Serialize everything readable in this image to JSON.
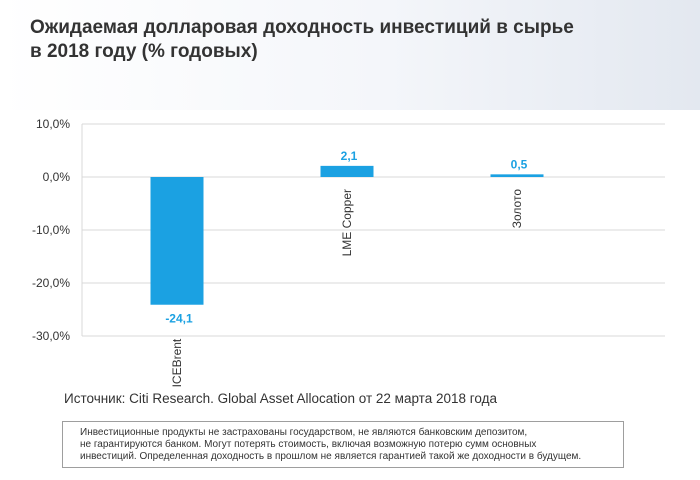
{
  "title": {
    "line1": "Ожидаемая долларовая доходность инвестиций в сырье",
    "line2": "в 2018 году (% годовых)"
  },
  "chart_data": {
    "type": "bar",
    "categories": [
      "ICEBrent",
      "LME Copper",
      "Золото"
    ],
    "values": [
      -24.1,
      2.1,
      0.5
    ],
    "data_labels": [
      "-24,1",
      "2,1",
      "0,5"
    ],
    "ylim": [
      -30,
      10
    ],
    "yticks": [
      10,
      0,
      -10,
      -20,
      -30
    ],
    "ytick_labels": [
      "10,0%",
      "0,0%",
      "-10,0%",
      "-20,0%",
      "-30,0%"
    ],
    "category_label_placement": "rotated, below each bar",
    "grid": true,
    "xlabel": "",
    "ylabel": "",
    "bar_color": "#1ba1e2",
    "label_color": "#1ba1e2"
  },
  "source": "Источник: Citi Research. Global Asset Allocation от 22 марта 2018 года",
  "disclaimer": {
    "line1": "Инвестиционные продукты не застрахованы государством, не являются банковским депозитом,",
    "line2": "не гарантируются банком. Могут потерять стоимость, включая возможную потерю сумм основных",
    "line3": "инвестиций. Определенная доходность в прошлом не является гарантией такой же доходности в будущем."
  }
}
